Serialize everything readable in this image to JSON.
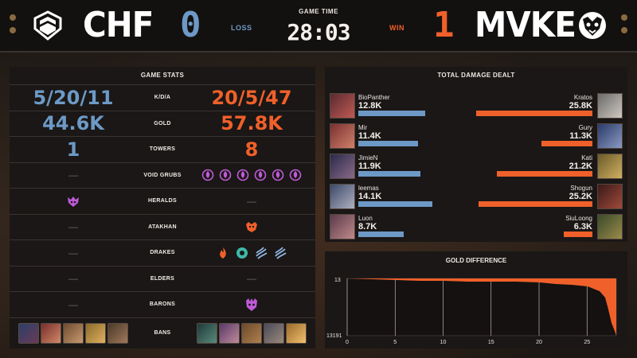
{
  "colors": {
    "blue": "#6d99c6",
    "orange": "#f0602a",
    "purple": "#c05ad8"
  },
  "header": {
    "left_team": "CHF",
    "right_team": "MVKE",
    "left_score": "0",
    "right_score": "1",
    "left_result": "LOSS",
    "right_result": "WIN",
    "game_time_label": "GAME TIME",
    "game_time": "28:03"
  },
  "game_stats": {
    "title": "GAME STATS",
    "rows": [
      {
        "label": "K/D/A",
        "left": "5/20/11",
        "right": "20/5/47"
      },
      {
        "label": "GOLD",
        "left": "44.6K",
        "right": "57.8K"
      },
      {
        "label": "TOWERS",
        "left": "1",
        "right": "8"
      },
      {
        "label": "VOID GRUBS",
        "left": "—",
        "right_icons": [
          "void-grub-icon",
          "void-grub-icon",
          "void-grub-icon",
          "void-grub-icon",
          "void-grub-icon",
          "void-grub-icon"
        ]
      },
      {
        "label": "HERALDS",
        "left_icons": [
          "herald-icon"
        ],
        "right": "—"
      },
      {
        "label": "ATAKHAN",
        "left": "—",
        "right_icons": [
          "atakhan-icon"
        ]
      },
      {
        "label": "DRAKES",
        "left": "—",
        "right_icons": [
          "infernal-drake-icon",
          "hextech-drake-icon",
          "cloud-drake-icon",
          "cloud-drake-icon"
        ]
      },
      {
        "label": "ELDERS",
        "left": "—",
        "right": "—"
      },
      {
        "label": "BARONS",
        "left": "—",
        "right_icons": [
          "baron-icon"
        ]
      },
      {
        "label": "BANS",
        "left_bans": 5,
        "right_bans": 5
      }
    ]
  },
  "damage": {
    "title": "TOTAL DAMAGE DEALT",
    "max": 25.8,
    "players": [
      {
        "left_name": "BioPanther",
        "left_value": 12.8,
        "left_display": "12.8K",
        "right_name": "Kratos",
        "right_value": 25.8,
        "right_display": "25.8K"
      },
      {
        "left_name": "Mir",
        "left_value": 11.4,
        "left_display": "11.4K",
        "right_name": "Gury",
        "right_value": 11.3,
        "right_display": "11.3K"
      },
      {
        "left_name": "JimieN",
        "left_value": 11.9,
        "left_display": "11.9K",
        "right_name": "Kati",
        "right_value": 21.2,
        "right_display": "21.2K"
      },
      {
        "left_name": "leemas",
        "left_value": 14.1,
        "left_display": "14.1K",
        "right_name": "Shogun",
        "right_value": 25.2,
        "right_display": "25.2K"
      },
      {
        "left_name": "Luon",
        "left_value": 8.7,
        "left_display": "8.7K",
        "right_name": "SiuLoong",
        "right_value": 6.3,
        "right_display": "6.3K"
      }
    ]
  },
  "gold_difference": {
    "title": "GOLD DIFFERENCE",
    "y_top_label": "13",
    "y_bottom_label": "13191",
    "x_ticks": [
      "0",
      "5",
      "10",
      "15",
      "20",
      "25"
    ]
  }
}
